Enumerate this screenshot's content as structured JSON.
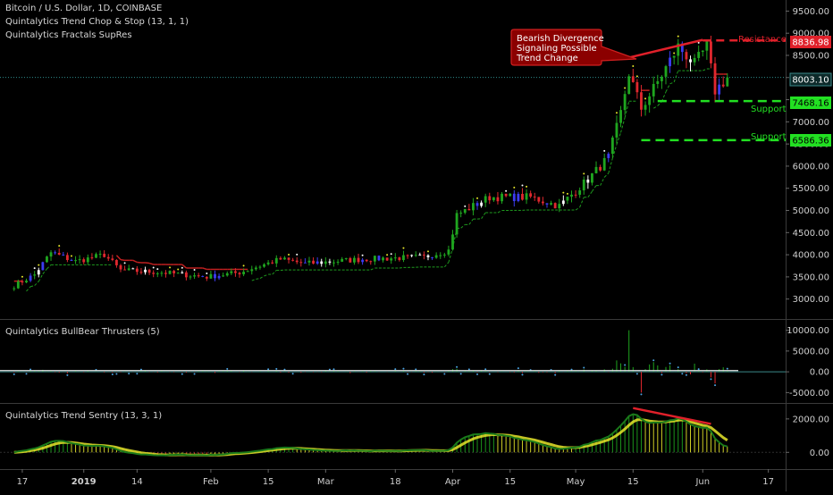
{
  "header": {
    "title": "Bitcoin / U.S. Dollar, 1D, COINBASE",
    "indicator1": "Quintalytics Trend Chop & Stop (13, 1, 1)",
    "indicator2": "Quintalytics Fractals SupRes"
  },
  "annotation": {
    "line1": "Bearish Divergence",
    "line2": "Signaling Possible",
    "line3": "Trend Change"
  },
  "levels": {
    "resistance_label": "Resistance",
    "resistance_value": "8836.98",
    "current_value": "8003.10",
    "support1_label": "Support",
    "support1_value": "7468.16",
    "support2_label": "Support",
    "support2_value": "6586.36"
  },
  "colors": {
    "background": "#000000",
    "bull": "#1fa51f",
    "bear": "#e0282e",
    "blue": "#3b3bf0",
    "yellow": "#e6e62a",
    "support": "#22e022",
    "resistance": "#e0202a"
  },
  "panels": {
    "p2_title": "Quintalytics BullBear Thrusters (5)",
    "p3_title": "Quintalytics Trend Sentry (13, 3, 1)"
  },
  "chart_data": [
    {
      "type": "candlestick",
      "title": "Bitcoin / U.S. Dollar, 1D, COINBASE",
      "x_ticks": [
        "17",
        "2019",
        "14",
        "Feb",
        "15",
        "Mar",
        "18",
        "Apr",
        "15",
        "May",
        "15",
        "Jun",
        "17"
      ],
      "y_ticks": [
        "9500.00",
        "9000.00",
        "8500.00",
        "8000.00",
        "7500.00",
        "7000.00",
        "6500.00",
        "6000.00",
        "5500.00",
        "5000.00",
        "4500.00",
        "4000.00",
        "3500.00",
        "3000.00"
      ],
      "ylim": [
        2550,
        9750
      ],
      "anchors": [
        {
          "date": "2018-12-15",
          "close": 3300
        },
        {
          "date": "2018-12-20",
          "close": 3550
        },
        {
          "date": "2018-12-24",
          "close": 4050
        },
        {
          "date": "2018-12-30",
          "close": 3850
        },
        {
          "date": "2019-01-06",
          "close": 4000
        },
        {
          "date": "2019-01-10",
          "close": 3650
        },
        {
          "date": "2019-01-20",
          "close": 3600
        },
        {
          "date": "2019-01-31",
          "close": 3500
        },
        {
          "date": "2019-02-08",
          "close": 3600
        },
        {
          "date": "2019-02-18",
          "close": 3900
        },
        {
          "date": "2019-02-24",
          "close": 3800
        },
        {
          "date": "2019-03-10",
          "close": 3900
        },
        {
          "date": "2019-03-25",
          "close": 3950
        },
        {
          "date": "2019-03-31",
          "close": 4100
        },
        {
          "date": "2019-04-02",
          "close": 4900
        },
        {
          "date": "2019-04-10",
          "close": 5300
        },
        {
          "date": "2019-04-20",
          "close": 5300
        },
        {
          "date": "2019-04-27",
          "close": 5100
        },
        {
          "date": "2019-05-04",
          "close": 5700
        },
        {
          "date": "2019-05-09",
          "close": 6200
        },
        {
          "date": "2019-05-12",
          "close": 7200
        },
        {
          "date": "2019-05-14",
          "close": 8100
        },
        {
          "date": "2019-05-17",
          "close": 7300
        },
        {
          "date": "2019-05-21",
          "close": 7900
        },
        {
          "date": "2019-05-26",
          "close": 8700
        },
        {
          "date": "2019-05-30",
          "close": 8300
        },
        {
          "date": "2019-06-02",
          "close": 8700
        },
        {
          "date": "2019-06-04",
          "close": 7700
        },
        {
          "date": "2019-06-07",
          "close": 8003
        }
      ],
      "current_price": 8003.1,
      "resistance": 8836.98,
      "supports": [
        7468.16,
        6586.36
      ]
    },
    {
      "type": "histogram",
      "title": "Quintalytics BullBear Thrusters (5)",
      "y_ticks": [
        "10000.00",
        "5000.00",
        "0.00",
        "-5000.00"
      ],
      "ylim": [
        -7500,
        12500
      ]
    },
    {
      "type": "area",
      "title": "Quintalytics Trend Sentry (13, 3, 1)",
      "y_ticks": [
        "2000.00",
        "0.00"
      ],
      "ylim": [
        -1000,
        2900
      ]
    }
  ]
}
